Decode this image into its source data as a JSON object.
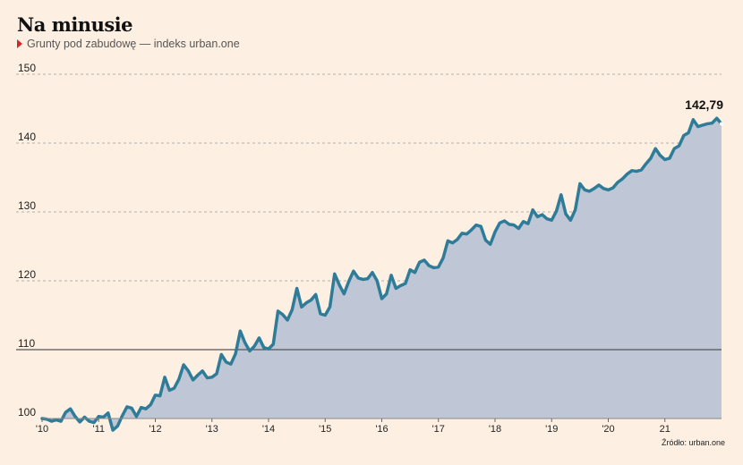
{
  "header": {
    "title": "Na minusie",
    "subtitle": "Grunty pod zabudowę — indeks urban.one",
    "marker_color": "#d7262b"
  },
  "source": "Źródło: urban.one",
  "colors": {
    "line": "#2f7c99",
    "area": "#bfc6d6",
    "grid": "#999999",
    "baseline": "#555555",
    "background": "#fdf0e2"
  },
  "chart_data": {
    "type": "area",
    "x_start": "2010-01",
    "x_step": "month",
    "ylim": [
      100,
      150
    ],
    "yticks": [
      100,
      110,
      120,
      130,
      140,
      150
    ],
    "ytick_labels": [
      "100",
      "110",
      "120",
      "130",
      "140",
      "150"
    ],
    "reference_line": 110,
    "xtick_labels": [
      "'10",
      "'11",
      "'12",
      "'13",
      "'14",
      "'15",
      "'16",
      "'17",
      "'18",
      "'19",
      "'20",
      "21"
    ],
    "last_value_label": "142,79",
    "grid": true,
    "values": [
      100.0,
      99.9,
      99.6,
      99.8,
      99.6,
      100.9,
      101.4,
      100.3,
      99.5,
      100.2,
      99.6,
      99.4,
      100.3,
      100.2,
      100.8,
      98.3,
      98.9,
      100.4,
      101.7,
      101.5,
      100.3,
      101.6,
      101.4,
      102.0,
      103.4,
      103.3,
      106.0,
      104.1,
      104.4,
      105.7,
      107.8,
      106.9,
      105.6,
      106.3,
      106.9,
      105.9,
      106.0,
      106.5,
      109.3,
      108.2,
      107.9,
      109.4,
      112.7,
      111.0,
      109.8,
      110.5,
      111.7,
      110.3,
      110.1,
      110.8,
      115.6,
      115.1,
      114.3,
      115.8,
      118.9,
      116.2,
      116.8,
      117.2,
      118.0,
      115.2,
      115.0,
      116.2,
      121.0,
      119.4,
      118.1,
      119.9,
      121.4,
      120.4,
      120.2,
      120.3,
      121.2,
      120.0,
      117.4,
      118.1,
      120.8,
      118.9,
      119.3,
      119.6,
      121.6,
      121.2,
      122.7,
      123.0,
      122.2,
      121.9,
      122.0,
      123.3,
      125.8,
      125.5,
      126.0,
      126.9,
      126.8,
      127.4,
      128.1,
      127.9,
      125.9,
      125.3,
      127.1,
      128.4,
      128.7,
      128.2,
      128.1,
      127.6,
      128.6,
      128.3,
      130.3,
      129.3,
      129.6,
      129.0,
      128.8,
      130.1,
      132.5,
      129.7,
      128.8,
      130.3,
      134.1,
      133.2,
      133.0,
      133.4,
      133.9,
      133.4,
      133.2,
      133.5,
      134.3,
      134.8,
      135.5,
      136.0,
      135.9,
      136.1,
      137.0,
      137.8,
      139.2,
      138.2,
      137.6,
      137.8,
      139.2,
      139.6,
      141.1,
      141.5,
      143.4,
      142.4,
      142.6,
      142.8,
      142.9,
      143.6,
      142.79
    ]
  }
}
